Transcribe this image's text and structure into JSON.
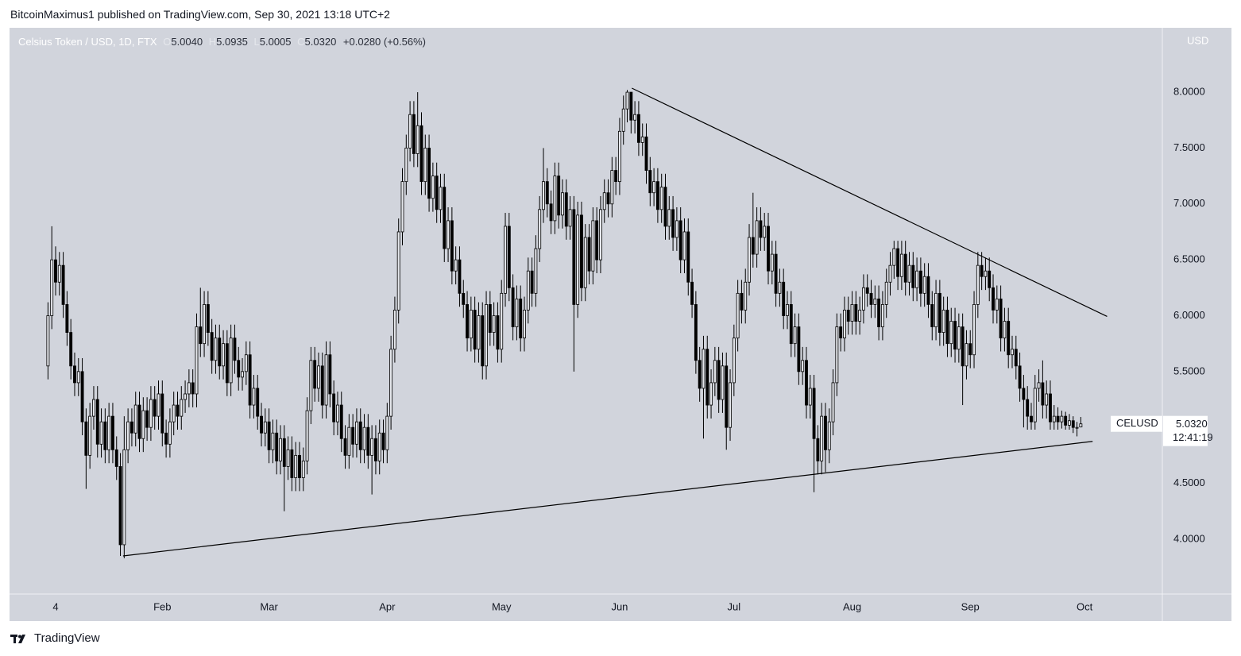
{
  "header": {
    "text": "BitcoinMaximus1 published on TradingView.com, Sep 30, 2021 13:18 UTC+2"
  },
  "legend": {
    "symbol": "Celsius Token / USD, 1D, FTX",
    "o_letter": "O",
    "o": "5.0040",
    "h_letter": "H",
    "h": "5.0935",
    "l_letter": "L",
    "l": "5.0005",
    "c_letter": "C",
    "c": "5.0320",
    "change": "+0.0280 (+0.56%)"
  },
  "currency": "USD",
  "last_price": {
    "symbol": "CELUSD",
    "value": "5.0320",
    "countdown": "12:41:19"
  },
  "footer": {
    "brand": "TradingView"
  },
  "chart_data": {
    "type": "candlestick",
    "up_color": "#e4e6eb",
    "down_color": "#000000",
    "wick_color": "#000000",
    "line_color": "#000000",
    "xlim": [
      -7.88,
      294.4
    ],
    "ylim": [
      3.516,
      8.562
    ],
    "xticks": [
      4,
      {
        "value": 32,
        "label": "Feb"
      },
      {
        "value": 60,
        "label": "Mar"
      },
      {
        "value": 91,
        "label": "Apr"
      },
      {
        "value": 121,
        "label": "May"
      },
      {
        "value": 152,
        "label": "Jun"
      },
      {
        "value": 182,
        "label": "Jul"
      },
      {
        "value": 213,
        "label": "Aug"
      },
      {
        "value": 244,
        "label": "Sep"
      },
      {
        "value": 274,
        "label": "Oct"
      }
    ],
    "yticks": [
      {
        "value": 4,
        "label": "4.0000"
      },
      {
        "value": 4.5,
        "label": "4.5000"
      },
      {
        "value": 5,
        "label": "5.0000"
      },
      {
        "value": 5.5,
        "label": "5.5000"
      },
      {
        "value": 6,
        "label": "6.0000"
      },
      {
        "value": 6.5,
        "label": "6.5000"
      },
      {
        "value": 7,
        "label": "7.0000"
      },
      {
        "value": 7.5,
        "label": "7.5000"
      },
      {
        "value": 8,
        "label": "8.0000"
      }
    ],
    "grid": false,
    "x": [
      2,
      3,
      4,
      5,
      6,
      7,
      8,
      9,
      10,
      11,
      12,
      13,
      14,
      15,
      16,
      17,
      18,
      19,
      20,
      21,
      22,
      23,
      24,
      25,
      26,
      27,
      28,
      29,
      30,
      31,
      32,
      33,
      34,
      35,
      36,
      37,
      38,
      39,
      40,
      41,
      42,
      43,
      44,
      45,
      46,
      47,
      48,
      49,
      50,
      51,
      52,
      53,
      54,
      55,
      56,
      57,
      58,
      59,
      60,
      61,
      62,
      63,
      64,
      65,
      66,
      67,
      68,
      69,
      70,
      71,
      72,
      73,
      74,
      75,
      76,
      77,
      78,
      79,
      80,
      81,
      82,
      83,
      84,
      85,
      86,
      87,
      88,
      89,
      90,
      91,
      92,
      93,
      94,
      95,
      96,
      97,
      98,
      99,
      100,
      101,
      102,
      103,
      104,
      105,
      106,
      107,
      108,
      109,
      110,
      111,
      112,
      113,
      114,
      115,
      116,
      117,
      118,
      119,
      120,
      121,
      122,
      123,
      124,
      125,
      126,
      127,
      128,
      129,
      130,
      131,
      132,
      133,
      134,
      135,
      136,
      137,
      138,
      139,
      140,
      141,
      142,
      143,
      144,
      145,
      146,
      147,
      148,
      149,
      150,
      151,
      152,
      153,
      154,
      155,
      156,
      157,
      158,
      159,
      160,
      161,
      162,
      163,
      164,
      165,
      166,
      167,
      168,
      169,
      170,
      171,
      172,
      173,
      174,
      175,
      176,
      177,
      178,
      179,
      180,
      181,
      182,
      183,
      184,
      185,
      186,
      187,
      188,
      189,
      190,
      191,
      192,
      193,
      194,
      195,
      196,
      197,
      198,
      199,
      200,
      201,
      202,
      203,
      204,
      205,
      206,
      207,
      208,
      209,
      210,
      211,
      212,
      213,
      214,
      215,
      216,
      217,
      218,
      219,
      220,
      221,
      222,
      223,
      224,
      225,
      226,
      227,
      228,
      229,
      230,
      231,
      232,
      233,
      234,
      235,
      236,
      237,
      238,
      239,
      240,
      241,
      242,
      243,
      244,
      245,
      246,
      247,
      248,
      249,
      250,
      251,
      252,
      253,
      254,
      255,
      256,
      257,
      258,
      259,
      260,
      261,
      262,
      263,
      264,
      265,
      266,
      267,
      268,
      269,
      270,
      271,
      272,
      273
    ],
    "open": [
      5.55,
      6.0,
      6.5,
      6.3,
      6.45,
      6.1,
      5.85,
      5.55,
      5.4,
      5.5,
      5.05,
      4.75,
      5.1,
      5.25,
      4.85,
      5.05,
      4.8,
      5.1,
      4.8,
      4.65,
      3.95,
      4.8,
      5.05,
      4.95,
      5.2,
      4.9,
      5.15,
      5.0,
      5.25,
      5.1,
      5.3,
      4.95,
      4.85,
      5.05,
      5.2,
      5.1,
      5.25,
      5.3,
      5.4,
      5.3,
      5.9,
      5.75,
      6.1,
      5.85,
      5.6,
      5.8,
      5.55,
      5.75,
      5.4,
      5.8,
      5.6,
      5.45,
      5.5,
      5.65,
      5.2,
      5.35,
      5.1,
      4.95,
      5.05,
      4.8,
      4.95,
      4.7,
      4.9,
      4.65,
      4.8,
      4.55,
      4.75,
      4.55,
      4.7,
      5.15,
      5.6,
      5.35,
      5.55,
      5.2,
      5.65,
      5.3,
      5.05,
      5.2,
      4.9,
      4.75,
      5.0,
      4.85,
      5.05,
      4.8,
      5.0,
      4.75,
      4.9,
      4.7,
      4.95,
      4.8,
      5.1,
      5.7,
      6.05,
      6.75,
      7.2,
      7.5,
      7.8,
      7.45,
      7.7,
      7.2,
      7.5,
      7.05,
      7.25,
      6.95,
      7.15,
      6.6,
      6.85,
      6.4,
      6.5,
      6.2,
      6.1,
      5.8,
      6.05,
      5.7,
      6.0,
      5.55,
      6.1,
      5.85,
      6.0,
      5.7,
      6.2,
      6.8,
      6.25,
      5.9,
      6.15,
      5.8,
      6.05,
      6.4,
      6.2,
      6.6,
      6.95,
      7.2,
      7.0,
      6.85,
      7.25,
      6.9,
      7.1,
      6.8,
      6.95,
      6.1,
      6.9,
      6.25,
      6.7,
      6.4,
      6.85,
      6.5,
      6.95,
      7.1,
      7.0,
      7.3,
      7.2,
      7.65,
      7.85,
      8.0,
      7.75,
      7.8,
      7.55,
      7.6,
      7.3,
      7.1,
      7.2,
      6.95,
      7.15,
      6.8,
      6.95,
      6.7,
      6.85,
      6.5,
      6.75,
      6.3,
      6.1,
      5.6,
      5.35,
      5.7,
      5.2,
      5.4,
      5.6,
      5.25,
      5.55,
      5.0,
      5.4,
      5.8,
      6.2,
      6.05,
      6.3,
      6.7,
      6.55,
      6.85,
      6.7,
      6.8,
      6.4,
      6.55,
      6.2,
      6.3,
      6.0,
      6.1,
      5.75,
      5.9,
      5.5,
      5.6,
      5.2,
      5.35,
      4.9,
      4.7,
      5.1,
      4.8,
      5.05,
      5.4,
      5.9,
      5.8,
      6.05,
      5.95,
      6.1,
      5.95,
      6.05,
      6.25,
      6.2,
      6.1,
      6.15,
      5.9,
      6.1,
      6.3,
      6.45,
      6.6,
      6.35,
      6.55,
      6.3,
      6.45,
      6.25,
      6.4,
      6.2,
      6.35,
      6.1,
      5.9,
      6.2,
      5.85,
      6.05,
      5.75,
      5.95,
      5.7,
      5.9,
      5.55,
      5.75,
      5.65,
      6.1,
      6.45,
      6.35,
      6.4,
      6.25,
      6.05,
      6.15,
      5.8,
      5.95,
      5.65,
      5.7,
      5.55,
      5.35,
      5.25,
      5.1,
      5.05,
      5.35,
      5.4,
      5.2,
      5.3,
      5.05,
      5.1,
      5.05,
      5.1,
      5.02,
      5.06,
      5.0,
      5.004
    ],
    "high": [
      6.12,
      6.8,
      6.62,
      6.57,
      6.57,
      6.22,
      5.97,
      5.67,
      5.62,
      5.62,
      5.17,
      5.22,
      5.37,
      5.37,
      5.17,
      5.17,
      5.22,
      5.22,
      4.92,
      4.77,
      5.1,
      5.17,
      5.17,
      5.32,
      5.32,
      5.27,
      5.27,
      5.37,
      5.37,
      5.42,
      5.42,
      5.07,
      5.17,
      5.32,
      5.32,
      5.37,
      5.42,
      5.52,
      5.52,
      6.02,
      6.25,
      6.22,
      6.22,
      5.97,
      5.92,
      5.92,
      5.87,
      5.87,
      5.92,
      5.92,
      5.72,
      5.62,
      5.77,
      5.77,
      5.47,
      5.47,
      5.22,
      5.17,
      5.17,
      5.07,
      5.07,
      5.02,
      5.02,
      4.92,
      4.92,
      4.87,
      4.87,
      4.82,
      5.27,
      5.72,
      5.72,
      5.67,
      5.67,
      5.77,
      5.77,
      5.42,
      5.32,
      5.32,
      5.02,
      5.12,
      5.12,
      5.17,
      5.17,
      5.12,
      5.12,
      5.02,
      5.02,
      5.07,
      5.07,
      5.22,
      5.82,
      6.17,
      6.87,
      7.32,
      7.62,
      7.92,
      7.92,
      8.0,
      7.82,
      7.62,
      7.62,
      7.37,
      7.37,
      7.27,
      7.27,
      6.97,
      6.97,
      6.62,
      6.62,
      6.32,
      6.22,
      6.17,
      6.17,
      6.12,
      6.12,
      6.22,
      6.22,
      6.12,
      6.12,
      6.32,
      6.92,
      6.92,
      6.37,
      6.27,
      6.27,
      6.17,
      6.52,
      6.52,
      6.72,
      7.07,
      7.5,
      7.32,
      7.12,
      7.37,
      7.37,
      7.22,
      7.22,
      7.07,
      7.07,
      7.02,
      7.02,
      6.82,
      6.82,
      6.97,
      6.97,
      7.07,
      7.22,
      7.22,
      7.42,
      7.42,
      7.77,
      7.97,
      8.02,
      8.0,
      7.92,
      7.92,
      7.72,
      7.72,
      7.42,
      7.32,
      7.32,
      7.27,
      7.27,
      7.07,
      7.07,
      6.97,
      6.97,
      6.87,
      6.87,
      6.42,
      6.22,
      5.72,
      5.82,
      5.82,
      5.52,
      5.72,
      5.72,
      5.67,
      5.67,
      5.52,
      5.92,
      6.32,
      6.32,
      6.42,
      6.82,
      7.1,
      6.97,
      6.97,
      6.92,
      6.92,
      6.67,
      6.67,
      6.42,
      6.42,
      6.22,
      6.22,
      6.02,
      6.02,
      5.72,
      5.72,
      5.47,
      5.47,
      5.02,
      5.22,
      5.22,
      5.17,
      5.52,
      6.02,
      6.02,
      6.17,
      6.17,
      6.22,
      6.22,
      6.17,
      6.37,
      6.37,
      6.32,
      6.27,
      6.27,
      6.22,
      6.42,
      6.57,
      6.67,
      6.67,
      6.67,
      6.67,
      6.57,
      6.57,
      6.52,
      6.52,
      6.47,
      6.47,
      6.22,
      6.32,
      6.32,
      6.17,
      6.17,
      6.07,
      6.07,
      6.02,
      6.02,
      5.87,
      5.87,
      6.22,
      6.57,
      6.57,
      6.52,
      6.52,
      6.37,
      6.27,
      6.27,
      6.07,
      6.07,
      5.82,
      5.82,
      5.67,
      5.47,
      5.37,
      5.22,
      5.47,
      5.52,
      5.6,
      5.42,
      5.42,
      5.2,
      5.18,
      5.15,
      5.14,
      5.12,
      5.1,
      5.05,
      5.0935
    ],
    "low": [
      5.43,
      5.88,
      6.18,
      6.18,
      5.98,
      5.73,
      5.43,
      5.28,
      5.28,
      4.93,
      4.45,
      4.63,
      4.98,
      4.73,
      4.73,
      4.68,
      4.68,
      4.68,
      4.53,
      3.85,
      3.83,
      4.68,
      4.83,
      4.83,
      4.78,
      4.78,
      4.88,
      4.88,
      4.98,
      4.98,
      4.83,
      4.73,
      4.73,
      4.93,
      4.98,
      4.98,
      5.13,
      5.18,
      5.18,
      5.18,
      5.63,
      5.63,
      5.73,
      5.48,
      5.48,
      5.43,
      5.43,
      5.28,
      5.28,
      5.48,
      5.33,
      5.33,
      5.38,
      5.08,
      5.08,
      4.98,
      4.83,
      4.83,
      4.68,
      4.68,
      4.58,
      4.58,
      4.25,
      4.53,
      4.43,
      4.43,
      4.43,
      4.43,
      4.58,
      5.03,
      5.23,
      5.23,
      5.08,
      5.08,
      5.18,
      4.93,
      4.93,
      4.78,
      4.63,
      4.63,
      4.73,
      4.73,
      4.68,
      4.68,
      4.63,
      4.4,
      4.58,
      4.58,
      4.68,
      4.68,
      4.98,
      5.58,
      5.93,
      6.63,
      7.08,
      7.38,
      7.33,
      7.33,
      7.08,
      7.08,
      6.93,
      6.93,
      6.83,
      6.83,
      6.48,
      6.48,
      6.28,
      6.28,
      6.08,
      5.98,
      5.68,
      5.68,
      5.58,
      5.58,
      5.43,
      5.43,
      5.73,
      5.73,
      5.58,
      5.58,
      6.08,
      6.13,
      5.78,
      5.78,
      5.68,
      5.68,
      5.93,
      6.08,
      6.08,
      6.48,
      6.83,
      6.88,
      6.73,
      6.73,
      6.78,
      6.78,
      6.68,
      6.68,
      5.5,
      5.98,
      6.13,
      6.13,
      6.28,
      6.28,
      6.38,
      6.38,
      6.83,
      6.88,
      6.88,
      7.08,
      7.08,
      7.53,
      7.73,
      7.63,
      7.63,
      7.43,
      7.43,
      7.18,
      6.98,
      6.98,
      6.83,
      6.83,
      6.68,
      6.68,
      6.58,
      6.58,
      6.38,
      6.38,
      6.18,
      5.98,
      5.48,
      5.23,
      4.9,
      5.08,
      5.08,
      5.28,
      5.13,
      5.13,
      4.8,
      4.88,
      5.28,
      5.68,
      5.93,
      5.93,
      6.18,
      6.43,
      6.43,
      6.58,
      6.58,
      6.28,
      6.28,
      6.08,
      6.08,
      5.88,
      5.88,
      5.63,
      5.63,
      5.38,
      5.38,
      5.08,
      5.08,
      4.42,
      4.58,
      4.58,
      4.6,
      4.68,
      4.93,
      5.28,
      5.68,
      5.68,
      5.83,
      5.83,
      5.83,
      5.83,
      5.93,
      6.08,
      5.98,
      5.98,
      5.78,
      5.78,
      5.98,
      6.18,
      6.33,
      6.23,
      6.23,
      6.18,
      6.18,
      6.13,
      6.13,
      6.08,
      6.08,
      5.98,
      5.78,
      5.78,
      5.73,
      5.73,
      5.63,
      5.63,
      5.58,
      5.58,
      5.2,
      5.43,
      5.53,
      5.53,
      5.98,
      6.23,
      6.23,
      6.13,
      5.93,
      5.93,
      5.68,
      5.68,
      5.53,
      5.53,
      5.43,
      5.23,
      5.0,
      4.98,
      4.98,
      4.98,
      5.23,
      5.08,
      5.08,
      4.98,
      4.98,
      4.98,
      4.99,
      4.98,
      4.98,
      4.95,
      4.92,
      5.0005
    ],
    "close": [
      6.0,
      6.5,
      6.3,
      6.45,
      6.1,
      5.85,
      5.55,
      5.4,
      5.5,
      5.05,
      4.75,
      5.1,
      5.25,
      4.85,
      5.05,
      4.8,
      5.1,
      4.8,
      4.65,
      3.95,
      4.8,
      5.05,
      4.95,
      5.2,
      4.9,
      5.15,
      5.0,
      5.25,
      5.1,
      5.3,
      4.95,
      4.85,
      5.05,
      5.2,
      5.1,
      5.25,
      5.3,
      5.4,
      5.3,
      5.9,
      5.75,
      6.1,
      5.85,
      5.6,
      5.8,
      5.55,
      5.75,
      5.4,
      5.8,
      5.6,
      5.45,
      5.5,
      5.65,
      5.2,
      5.35,
      5.1,
      4.95,
      5.05,
      4.8,
      4.95,
      4.7,
      4.9,
      4.65,
      4.8,
      4.55,
      4.75,
      4.55,
      4.7,
      5.15,
      5.6,
      5.35,
      5.55,
      5.2,
      5.65,
      5.3,
      5.05,
      5.2,
      4.9,
      4.75,
      5.0,
      4.85,
      5.05,
      4.8,
      5.0,
      4.75,
      4.9,
      4.7,
      4.95,
      4.8,
      5.1,
      5.7,
      6.05,
      6.75,
      7.2,
      7.5,
      7.8,
      7.45,
      7.7,
      7.2,
      7.5,
      7.05,
      7.25,
      6.95,
      7.15,
      6.6,
      6.85,
      6.4,
      6.5,
      6.2,
      6.1,
      5.8,
      6.05,
      5.7,
      6.0,
      5.55,
      6.1,
      5.85,
      6.0,
      5.7,
      6.2,
      6.8,
      6.25,
      5.9,
      6.15,
      5.8,
      6.05,
      6.4,
      6.2,
      6.6,
      6.95,
      7.2,
      7.0,
      6.85,
      7.25,
      6.9,
      7.1,
      6.8,
      6.95,
      6.1,
      6.9,
      6.25,
      6.7,
      6.4,
      6.85,
      6.5,
      6.95,
      7.1,
      7.0,
      7.3,
      7.2,
      7.65,
      7.85,
      8.0,
      7.75,
      7.8,
      7.55,
      7.6,
      7.3,
      7.1,
      7.2,
      6.95,
      7.15,
      6.8,
      6.95,
      6.7,
      6.85,
      6.5,
      6.75,
      6.3,
      6.1,
      5.6,
      5.35,
      5.7,
      5.2,
      5.4,
      5.6,
      5.25,
      5.55,
      5.0,
      5.4,
      5.8,
      6.2,
      6.05,
      6.3,
      6.7,
      6.55,
      6.85,
      6.7,
      6.8,
      6.4,
      6.55,
      6.2,
      6.3,
      6.0,
      6.1,
      5.75,
      5.9,
      5.5,
      5.6,
      5.2,
      5.35,
      4.9,
      4.7,
      5.1,
      4.8,
      5.05,
      5.4,
      5.9,
      5.8,
      6.05,
      5.95,
      6.1,
      5.95,
      6.05,
      6.25,
      6.2,
      6.1,
      6.15,
      5.9,
      6.1,
      6.3,
      6.45,
      6.6,
      6.35,
      6.55,
      6.3,
      6.45,
      6.25,
      6.4,
      6.2,
      6.35,
      6.1,
      5.9,
      6.2,
      5.85,
      6.05,
      5.75,
      5.95,
      5.7,
      5.9,
      5.55,
      5.75,
      5.65,
      6.1,
      6.45,
      6.35,
      6.4,
      6.25,
      6.05,
      6.15,
      5.8,
      5.95,
      5.65,
      5.7,
      5.55,
      5.35,
      5.25,
      5.1,
      5.05,
      5.35,
      5.4,
      5.2,
      5.3,
      5.05,
      5.1,
      5.05,
      5.1,
      5.02,
      5.06,
      5.0,
      5.0,
      5.032
    ],
    "trendlines": [
      {
        "x": [
          155.2,
          279.9
        ],
        "y": [
          8.036,
          5.993
        ]
      },
      {
        "x": [
          21.7,
          276.1
        ],
        "y": [
          3.85,
          4.875
        ]
      }
    ]
  }
}
